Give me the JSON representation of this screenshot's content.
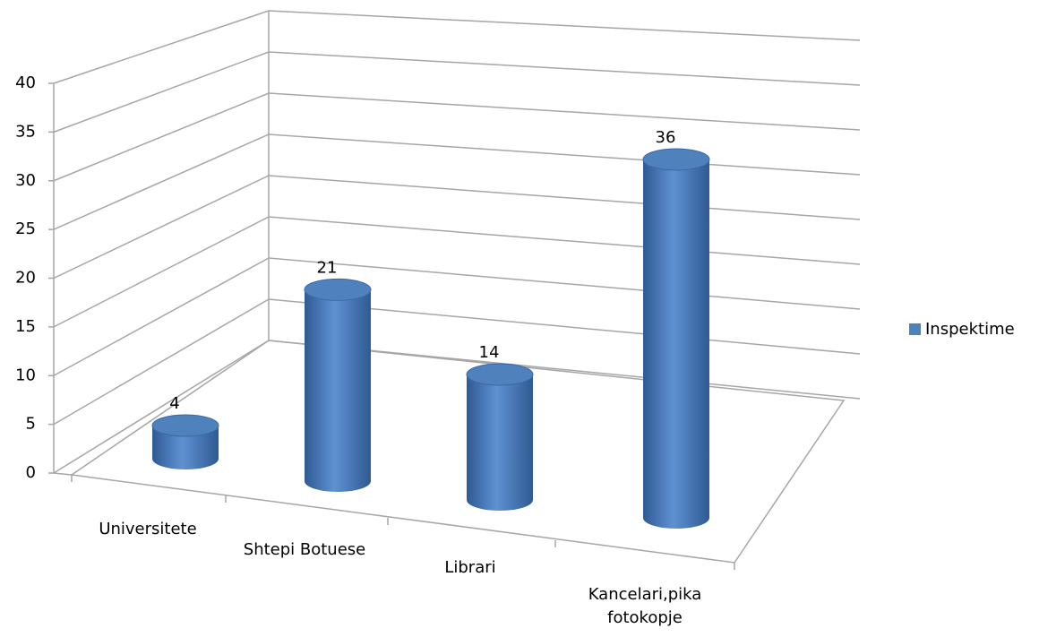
{
  "chart_data": {
    "type": "bar",
    "style": "3d-cylinder",
    "categories": [
      "Universitete",
      "Shtepi Botuese",
      "Librari",
      "Kancelari,pika fotokopje"
    ],
    "series": [
      {
        "name": "Inspektime",
        "color": "#4f81bd",
        "values": [
          4,
          21,
          14,
          36
        ]
      }
    ],
    "ylim": [
      0,
      40
    ],
    "yticks": [
      0,
      5,
      10,
      15,
      20,
      25,
      30,
      35,
      40
    ],
    "grid": true,
    "legend": "right"
  }
}
